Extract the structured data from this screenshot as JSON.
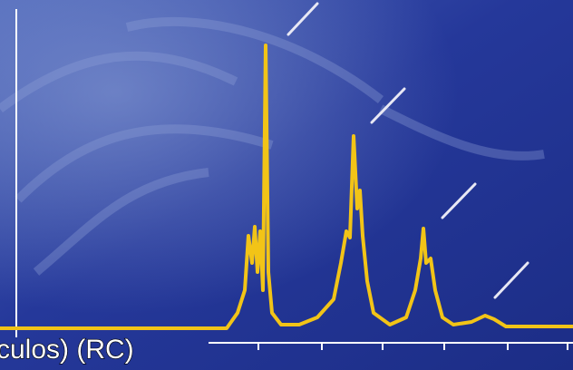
{
  "caption": "culos) (RC)"
}
